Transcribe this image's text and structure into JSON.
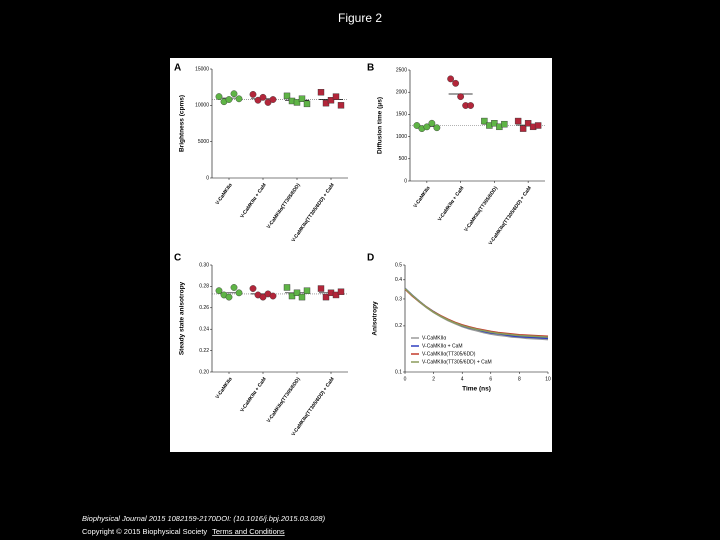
{
  "title": "Figure 2",
  "chart_data": [
    {
      "type": "dotplot",
      "panel": "A",
      "y_label": "Brightness (cpms)",
      "categories": [
        "V-CaMKIIα",
        "V-CaMKIIα + CaM",
        "V-CaMKIIα(TT305/6DD)",
        "V-CaMKIIα(TT305/6DD) + CaM"
      ],
      "colors": [
        "#5fb446",
        "#b3263a",
        "#5fb446",
        "#b3263a"
      ],
      "markers": [
        "circle",
        "circle",
        "square",
        "square"
      ],
      "values": [
        [
          11200,
          10500,
          10800,
          11600,
          10900
        ],
        [
          11500,
          10700,
          11100,
          10400,
          10800
        ],
        [
          11300,
          10600,
          10400,
          10900,
          10200
        ],
        [
          11800,
          10300,
          10700,
          11200,
          10000
        ]
      ],
      "means": [
        11000,
        10900,
        10700,
        10800
      ],
      "reference": 10800,
      "ylim": [
        0,
        15000
      ],
      "yticks": [
        0,
        5000,
        10000,
        15000
      ]
    },
    {
      "type": "dotplot",
      "panel": "B",
      "y_label": "Diffusion time (μs)",
      "categories": [
        "V-CaMKIIα",
        "V-CaMKIIα + CaM",
        "V-CaMKIIα(TT305/6DD)",
        "V-CaMKIIα(TT305/6DD) + CaM"
      ],
      "colors": [
        "#5fb446",
        "#b3263a",
        "#5fb446",
        "#b3263a"
      ],
      "markers": [
        "circle",
        "circle",
        "square",
        "square"
      ],
      "values": [
        [
          1250,
          1180,
          1220,
          1300,
          1200
        ],
        [
          2300,
          2200,
          1900,
          1700,
          1700
        ],
        [
          1350,
          1250,
          1300,
          1220,
          1280
        ],
        [
          1350,
          1180,
          1300,
          1220,
          1250
        ]
      ],
      "means": [
        1230,
        1960,
        1280,
        1260
      ],
      "reference": 1250,
      "ylim": [
        0,
        2500
      ],
      "yticks": [
        0,
        500,
        1000,
        1500,
        2000,
        2500
      ]
    },
    {
      "type": "dotplot",
      "panel": "C",
      "y_label": "Steady state anisotropy",
      "categories": [
        "V-CaMKIIα",
        "V-CaMKIIα + CaM",
        "V-CaMKIIα(TT305/6DD)",
        "V-CaMKIIα(TT305/6DD) + CaM"
      ],
      "colors": [
        "#5fb446",
        "#b3263a",
        "#5fb446",
        "#b3263a"
      ],
      "markers": [
        "circle",
        "circle",
        "square",
        "square"
      ],
      "values": [
        [
          0.276,
          0.272,
          0.27,
          0.279,
          0.274
        ],
        [
          0.278,
          0.272,
          0.27,
          0.273,
          0.271
        ],
        [
          0.279,
          0.271,
          0.274,
          0.27,
          0.276
        ],
        [
          0.278,
          0.27,
          0.274,
          0.272,
          0.275
        ]
      ],
      "means": [
        0.274,
        0.273,
        0.274,
        0.274
      ],
      "reference": 0.273,
      "ylim": [
        0.2,
        0.3
      ],
      "yticks": [
        {
          "value": 0.2,
          "label": "0.20"
        },
        0.22,
        0.24,
        0.26,
        0.28,
        {
          "value": 0.3,
          "label": "0.30"
        }
      ]
    },
    {
      "type": "line",
      "panel": "D",
      "x_label": "Time (ns)",
      "y_label": "Anisotropy",
      "log_y": true,
      "x": [
        0,
        0.5,
        1,
        1.5,
        2,
        2.5,
        3,
        3.5,
        4,
        4.5,
        5,
        5.5,
        6,
        6.5,
        7,
        7.5,
        8,
        8.5,
        9,
        9.5,
        10
      ],
      "series": [
        {
          "name": "V-CaMKIIα",
          "color": "#9a9a9a",
          "values": [
            0.35,
            0.316,
            0.287,
            0.264,
            0.245,
            0.23,
            0.217,
            0.207,
            0.198,
            0.191,
            0.186,
            0.181,
            0.177,
            0.174,
            0.172,
            0.169,
            0.168,
            0.166,
            0.165,
            0.164,
            0.163
          ]
        },
        {
          "name": "V-CaMKIIα + CaM",
          "color": "#2f3fc0",
          "values": [
            0.352,
            0.318,
            0.29,
            0.266,
            0.248,
            0.232,
            0.22,
            0.21,
            0.2,
            0.194,
            0.19,
            0.184,
            0.18,
            0.178,
            0.175,
            0.172,
            0.17,
            0.169,
            0.168,
            0.167,
            0.166
          ]
        },
        {
          "name": "V-CaMKIIα(TT305/6DD)",
          "color": "#c23a2b",
          "values": [
            0.348,
            0.314,
            0.288,
            0.266,
            0.247,
            0.233,
            0.221,
            0.211,
            0.203,
            0.197,
            0.192,
            0.188,
            0.184,
            0.181,
            0.179,
            0.177,
            0.175,
            0.174,
            0.173,
            0.172,
            0.171
          ]
        },
        {
          "name": "V-CaMKIIα(TT305/6DD) + CaM",
          "color": "#8a9a5b",
          "values": [
            0.351,
            0.317,
            0.289,
            0.265,
            0.246,
            0.231,
            0.219,
            0.209,
            0.201,
            0.195,
            0.19,
            0.186,
            0.182,
            0.179,
            0.177,
            0.175,
            0.173,
            0.172,
            0.171,
            0.17,
            0.169
          ]
        }
      ],
      "xlim": [
        0,
        10
      ],
      "xticks": [
        0,
        2,
        4,
        6,
        8,
        10
      ],
      "ylim": [
        0.1,
        0.5
      ],
      "yticks": [
        0.1,
        0.2,
        0.3,
        0.4,
        0.5
      ]
    }
  ],
  "footer": {
    "citation": "Biophysical Journal 2015 1082159-2170DOI: (10.1016/j.bpj.2015.03.028)",
    "copyright": "Copyright © 2015 Biophysical Society",
    "link": "Terms and Conditions"
  }
}
